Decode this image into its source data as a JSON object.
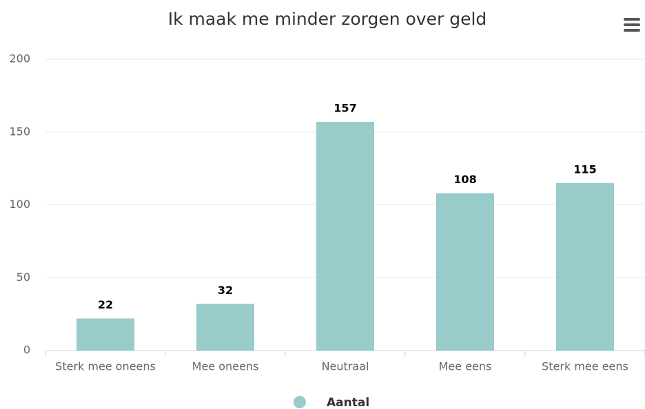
{
  "chart_data": {
    "type": "bar",
    "title": "Ik maak me minder zorgen over geld",
    "categories": [
      "Sterk mee oneens",
      "Mee oneens",
      "Neutraal",
      "Mee eens",
      "Sterk mee eens"
    ],
    "series": [
      {
        "name": "Aantal",
        "color": "#99cbcb",
        "values": [
          22,
          32,
          157,
          108,
          115
        ]
      }
    ],
    "ylim": [
      0,
      200
    ],
    "yticks": [
      0,
      50,
      100,
      150,
      200
    ],
    "grid": true,
    "legend": "bottom"
  }
}
